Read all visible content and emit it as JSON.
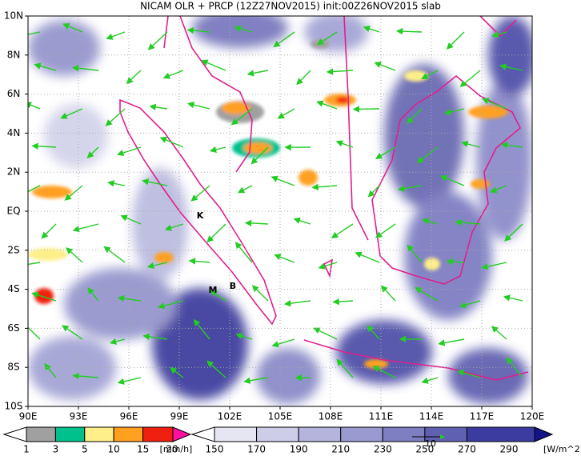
{
  "title": "NICAM OLR + PRCP (12Z27NOV2015) init:00Z26NOV2015 slab",
  "map": {
    "lon_labels": [
      "90E",
      "93E",
      "96E",
      "99E",
      "102E",
      "105E",
      "108E",
      "111E",
      "114E",
      "117E",
      "120E"
    ],
    "lat_labels": [
      "10N",
      "8N",
      "6N",
      "4N",
      "2N",
      "EQ",
      "2S",
      "4S",
      "6S",
      "8S",
      "10S"
    ],
    "places": [
      "K",
      "M",
      "B"
    ]
  },
  "precip_legend": {
    "labels": [
      "1",
      "3",
      "5",
      "10",
      "15",
      "20"
    ],
    "unit": "[mm/h]",
    "colors": [
      "#ffffff",
      "#a0a0a0",
      "#00c08c",
      "#ffef8a",
      "#ffa020",
      "#f02010",
      "#ff10a0"
    ]
  },
  "olr_legend": {
    "labels": [
      "150",
      "170",
      "190",
      "210",
      "230",
      "250",
      "270",
      "290"
    ],
    "unit": "[W/m^2]",
    "colors": [
      "#ffffff",
      "#e6e6f3",
      "#cdcde8",
      "#b4b4dc",
      "#9a9ad0",
      "#7e7ec2",
      "#6060b0",
      "#3c3ca0",
      "#141486"
    ]
  },
  "vector_ref": "10"
}
